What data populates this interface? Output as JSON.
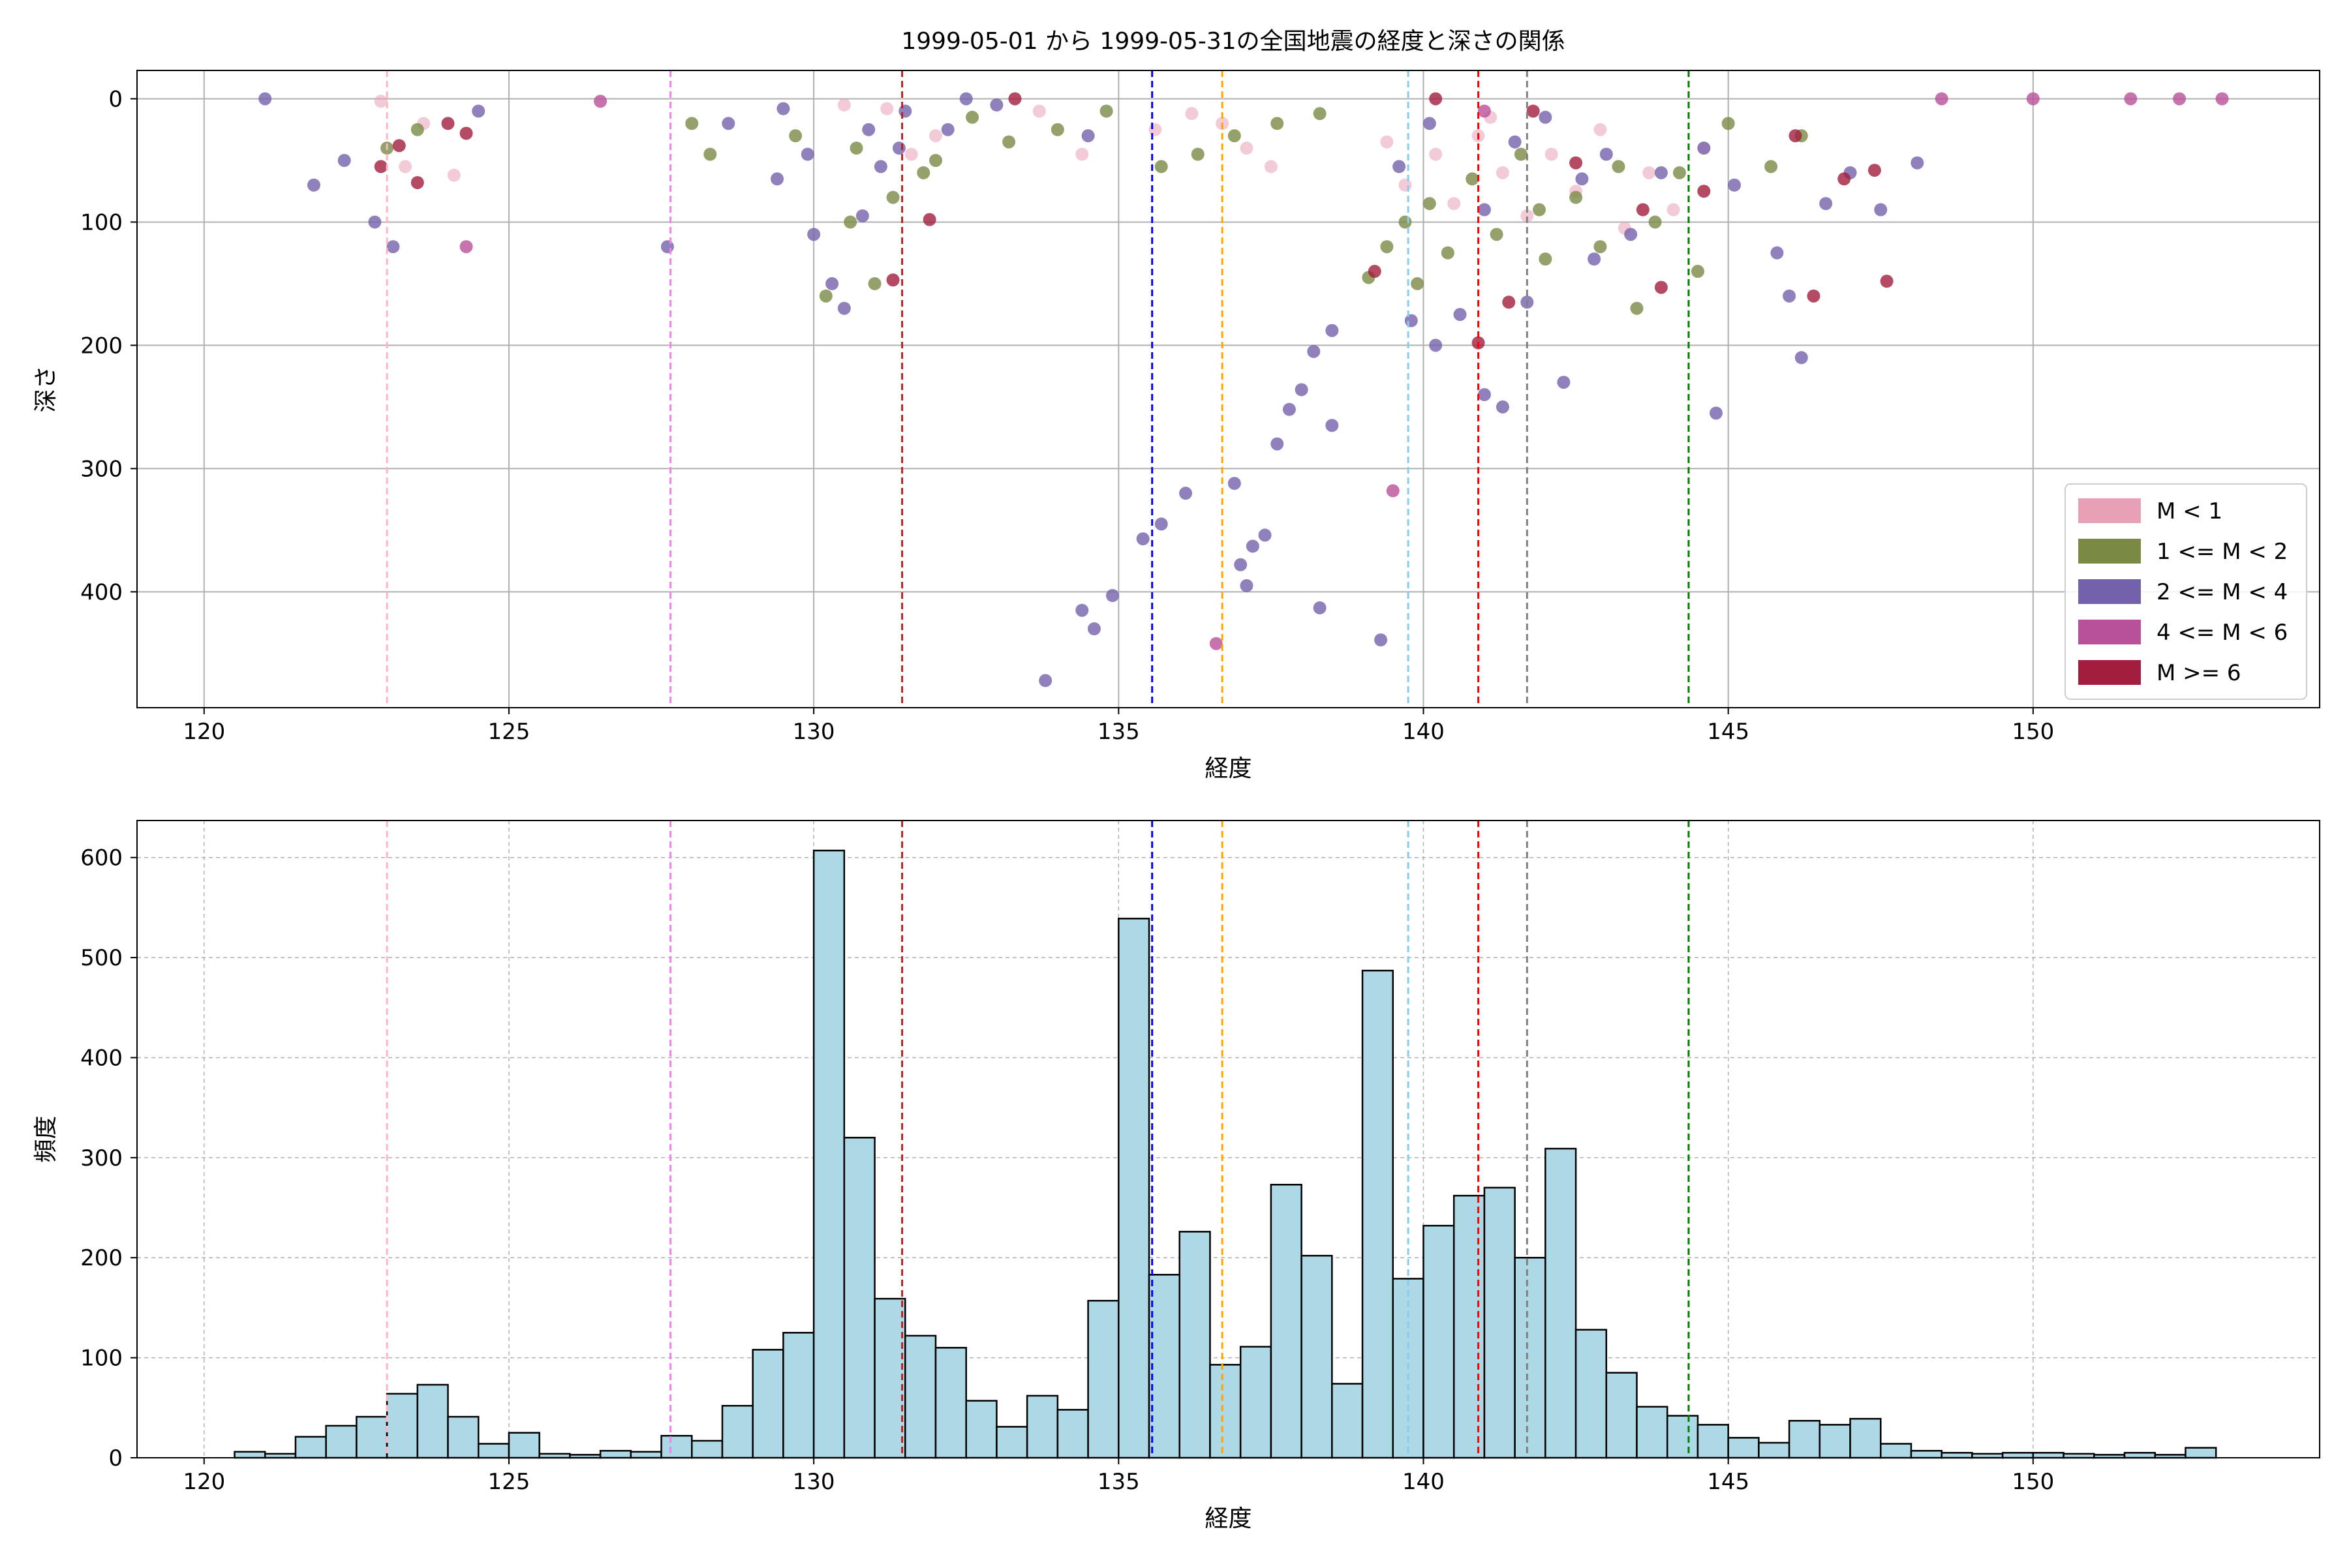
{
  "title": "1999-05-01 から 1999-05-31の全国地震の経度と深さの関係",
  "colors": {
    "m_lt1": "#e8a0b6",
    "m_1_2": "#7a8a45",
    "m_2_4": "#7461ab",
    "m_4_6": "#b9509a",
    "m_ge6": "#a21d3e",
    "hist_bar": "#add8e6",
    "grid": "#b0b0b0"
  },
  "chart_data": [
    {
      "type": "scatter",
      "xlabel": "経度",
      "ylabel": "深さ",
      "xlim": [
        118.9,
        154.7
      ],
      "ylim": [
        494,
        -23
      ],
      "y_inverted": true,
      "xticks": [
        120,
        125,
        130,
        135,
        140,
        145,
        150
      ],
      "yticks": [
        0,
        100,
        200,
        300,
        400
      ],
      "grid": true,
      "legend_position": "lower-right",
      "series": [
        {
          "name": "M < 1",
          "color": "#e8a0b6",
          "points": [
            [
              122.9,
              2
            ],
            [
              123.3,
              55
            ],
            [
              123.6,
              20
            ],
            [
              124.1,
              62
            ],
            [
              131.6,
              45
            ],
            [
              132.0,
              30
            ],
            [
              133.7,
              10
            ],
            [
              134.4,
              45
            ],
            [
              135.6,
              25
            ],
            [
              136.2,
              12
            ],
            [
              136.7,
              20
            ],
            [
              137.1,
              40
            ],
            [
              137.5,
              55
            ],
            [
              139.4,
              35
            ],
            [
              139.7,
              70
            ],
            [
              140.2,
              45
            ],
            [
              140.5,
              85
            ],
            [
              140.9,
              30
            ],
            [
              141.3,
              60
            ],
            [
              141.7,
              95
            ],
            [
              142.1,
              45
            ],
            [
              142.5,
              75
            ],
            [
              142.9,
              25
            ],
            [
              143.3,
              105
            ],
            [
              143.7,
              60
            ],
            [
              144.1,
              90
            ],
            [
              144.6,
              40
            ],
            [
              130.5,
              5
            ],
            [
              131.2,
              8
            ],
            [
              141.1,
              15
            ]
          ]
        },
        {
          "name": "1 <= M < 2",
          "color": "#7a8a45",
          "points": [
            [
              123.0,
              40
            ],
            [
              123.5,
              25
            ],
            [
              128.0,
              20
            ],
            [
              128.3,
              45
            ],
            [
              129.7,
              30
            ],
            [
              130.2,
              160
            ],
            [
              130.6,
              100
            ],
            [
              131.0,
              150
            ],
            [
              131.3,
              80
            ],
            [
              132.0,
              50
            ],
            [
              132.6,
              15
            ],
            [
              133.2,
              35
            ],
            [
              134.0,
              25
            ],
            [
              134.8,
              10
            ],
            [
              135.7,
              55
            ],
            [
              136.3,
              45
            ],
            [
              136.9,
              30
            ],
            [
              137.6,
              20
            ],
            [
              138.3,
              12
            ],
            [
              139.1,
              145
            ],
            [
              139.4,
              120
            ],
            [
              139.7,
              100
            ],
            [
              140.1,
              85
            ],
            [
              140.4,
              125
            ],
            [
              140.8,
              65
            ],
            [
              141.2,
              110
            ],
            [
              141.6,
              45
            ],
            [
              142.0,
              130
            ],
            [
              142.5,
              80
            ],
            [
              142.9,
              120
            ],
            [
              143.2,
              55
            ],
            [
              143.5,
              170
            ],
            [
              143.8,
              100
            ],
            [
              144.2,
              60
            ],
            [
              144.5,
              140
            ],
            [
              145.0,
              20
            ],
            [
              145.7,
              55
            ],
            [
              146.2,
              30
            ],
            [
              130.7,
              40
            ],
            [
              131.8,
              60
            ],
            [
              139.9,
              150
            ],
            [
              141.9,
              90
            ]
          ]
        },
        {
          "name": "2 <= M < 4",
          "color": "#7461ab",
          "points": [
            [
              121.0,
              0
            ],
            [
              121.8,
              70
            ],
            [
              122.3,
              50
            ],
            [
              122.8,
              100
            ],
            [
              123.1,
              120
            ],
            [
              124.5,
              10
            ],
            [
              127.6,
              120
            ],
            [
              128.6,
              20
            ],
            [
              129.4,
              65
            ],
            [
              129.9,
              45
            ],
            [
              130.0,
              110
            ],
            [
              130.3,
              150
            ],
            [
              130.5,
              170
            ],
            [
              130.8,
              95
            ],
            [
              131.1,
              55
            ],
            [
              131.4,
              40
            ],
            [
              132.2,
              25
            ],
            [
              133.0,
              5
            ],
            [
              134.5,
              30
            ],
            [
              135.4,
              357
            ],
            [
              135.7,
              345
            ],
            [
              136.1,
              320
            ],
            [
              134.9,
              403
            ],
            [
              134.4,
              415
            ],
            [
              134.6,
              430
            ],
            [
              133.8,
              472
            ],
            [
              136.9,
              312
            ],
            [
              137.2,
              363
            ],
            [
              137.0,
              378
            ],
            [
              137.1,
              395
            ],
            [
              137.4,
              354
            ],
            [
              137.6,
              280
            ],
            [
              137.8,
              252
            ],
            [
              138.0,
              236
            ],
            [
              138.2,
              205
            ],
            [
              138.5,
              188
            ],
            [
              138.5,
              265
            ],
            [
              138.3,
              413
            ],
            [
              139.3,
              439
            ],
            [
              139.8,
              180
            ],
            [
              140.2,
              200
            ],
            [
              140.6,
              175
            ],
            [
              141.0,
              240
            ],
            [
              141.3,
              250
            ],
            [
              141.7,
              165
            ],
            [
              142.3,
              230
            ],
            [
              142.8,
              130
            ],
            [
              143.4,
              110
            ],
            [
              143.9,
              60
            ],
            [
              144.6,
              40
            ],
            [
              145.1,
              70
            ],
            [
              145.8,
              125
            ],
            [
              146.2,
              210
            ],
            [
              146.6,
              85
            ],
            [
              147.0,
              60
            ],
            [
              147.5,
              90
            ],
            [
              148.1,
              52
            ],
            [
              144.8,
              255
            ],
            [
              146.0,
              160
            ],
            [
              129.5,
              8
            ],
            [
              132.5,
              0
            ],
            [
              140.1,
              20
            ],
            [
              141.5,
              35
            ],
            [
              142.0,
              15
            ],
            [
              130.9,
              25
            ],
            [
              141.0,
              90
            ],
            [
              142.6,
              65
            ],
            [
              143.0,
              45
            ],
            [
              131.5,
              10
            ],
            [
              139.6,
              55
            ]
          ]
        },
        {
          "name": "4 <= M < 6",
          "color": "#b9509a",
          "points": [
            [
              124.3,
              120
            ],
            [
              136.6,
              442
            ],
            [
              139.5,
              318
            ],
            [
              126.5,
              2
            ],
            [
              148.5,
              0
            ],
            [
              150.0,
              0
            ],
            [
              151.6,
              0
            ],
            [
              152.4,
              0
            ],
            [
              153.1,
              0
            ],
            [
              141.0,
              10
            ]
          ]
        },
        {
          "name": "M >= 6",
          "color": "#a21d3e",
          "points": [
            [
              122.9,
              55
            ],
            [
              123.2,
              38
            ],
            [
              123.5,
              68
            ],
            [
              124.0,
              20
            ],
            [
              124.3,
              28
            ],
            [
              131.3,
              147
            ],
            [
              131.9,
              98
            ],
            [
              133.3,
              0
            ],
            [
              139.2,
              140
            ],
            [
              140.9,
              198
            ],
            [
              141.4,
              165
            ],
            [
              143.6,
              90
            ],
            [
              143.9,
              153
            ],
            [
              144.6,
              75
            ],
            [
              146.1,
              30
            ],
            [
              146.4,
              160
            ],
            [
              146.9,
              65
            ],
            [
              147.4,
              58
            ],
            [
              147.6,
              148
            ],
            [
              142.5,
              52
            ],
            [
              141.8,
              10
            ],
            [
              140.2,
              0
            ]
          ]
        }
      ],
      "vlines": [
        {
          "x": 123.0,
          "color": "#ffb6c1"
        },
        {
          "x": 127.65,
          "color": "#ee82ee"
        },
        {
          "x": 131.45,
          "color": "#b22222"
        },
        {
          "x": 135.55,
          "color": "#0000ff"
        },
        {
          "x": 136.7,
          "color": "#ffa500"
        },
        {
          "x": 139.75,
          "color": "#87ceeb"
        },
        {
          "x": 140.9,
          "color": "#ff0000"
        },
        {
          "x": 141.7,
          "color": "#808080"
        },
        {
          "x": 144.35,
          "color": "#008000"
        }
      ]
    },
    {
      "type": "bar",
      "xlabel": "経度",
      "ylabel": "頻度",
      "xlim": [
        118.9,
        154.7
      ],
      "ylim": [
        0,
        637
      ],
      "xticks": [
        120,
        125,
        130,
        135,
        140,
        145,
        150
      ],
      "yticks": [
        0,
        100,
        200,
        300,
        400,
        500,
        600
      ],
      "grid": true,
      "bin_start": 120.5,
      "bin_width": 0.5,
      "values": [
        6,
        4,
        21,
        32,
        41,
        64,
        73,
        41,
        14,
        25,
        4,
        3,
        7,
        6,
        22,
        17,
        52,
        108,
        125,
        607,
        320,
        159,
        122,
        110,
        57,
        31,
        62,
        48,
        157,
        539,
        183,
        226,
        93,
        111,
        273,
        202,
        74,
        487,
        179,
        232,
        262,
        270,
        200,
        309,
        128,
        85,
        51,
        42,
        33,
        20,
        15,
        37,
        33,
        39,
        14,
        7,
        5,
        4,
        5,
        5,
        4,
        3,
        5,
        3,
        10
      ],
      "vlines": [
        {
          "x": 123.0,
          "color": "#ffb6c1"
        },
        {
          "x": 127.65,
          "color": "#ee82ee"
        },
        {
          "x": 131.45,
          "color": "#b22222"
        },
        {
          "x": 135.55,
          "color": "#0000ff"
        },
        {
          "x": 136.7,
          "color": "#ffa500"
        },
        {
          "x": 139.75,
          "color": "#87ceeb"
        },
        {
          "x": 140.9,
          "color": "#ff0000"
        },
        {
          "x": 141.7,
          "color": "#808080"
        },
        {
          "x": 144.35,
          "color": "#008000"
        }
      ]
    }
  ]
}
